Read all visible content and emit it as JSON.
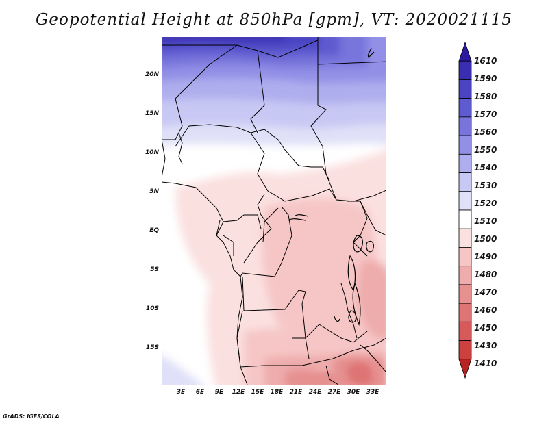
{
  "title": "Geopotential Height at 850hPa [gpm], VT: 2020021115",
  "footer": "GrADS: IGES/COLA",
  "lat_labels": [
    "20N",
    "15N",
    "10N",
    "5N",
    "EQ",
    "5S",
    "10S",
    "15S"
  ],
  "lon_labels": [
    "3E",
    "6E",
    "9E",
    "12E",
    "15E",
    "18E",
    "21E",
    "24E",
    "27E",
    "30E",
    "33E"
  ],
  "colorbar": {
    "labels": [
      "1610",
      "1590",
      "1580",
      "1570",
      "1560",
      "1550",
      "1540",
      "1530",
      "1520",
      "1510",
      "1500",
      "1490",
      "1480",
      "1470",
      "1460",
      "1450",
      "1430",
      "1410"
    ],
    "colors": [
      "#2b1a9e",
      "#3a2eb0",
      "#4a44c2",
      "#5e5ad0",
      "#7874dc",
      "#9290e6",
      "#aeaeee",
      "#c8c8f4",
      "#e0e0f8",
      "#ffffff",
      "#fbe0e0",
      "#f6c6c6",
      "#eeacac",
      "#e69090",
      "#de7474",
      "#d65a5a",
      "#cc4040",
      "#b82424"
    ]
  }
}
